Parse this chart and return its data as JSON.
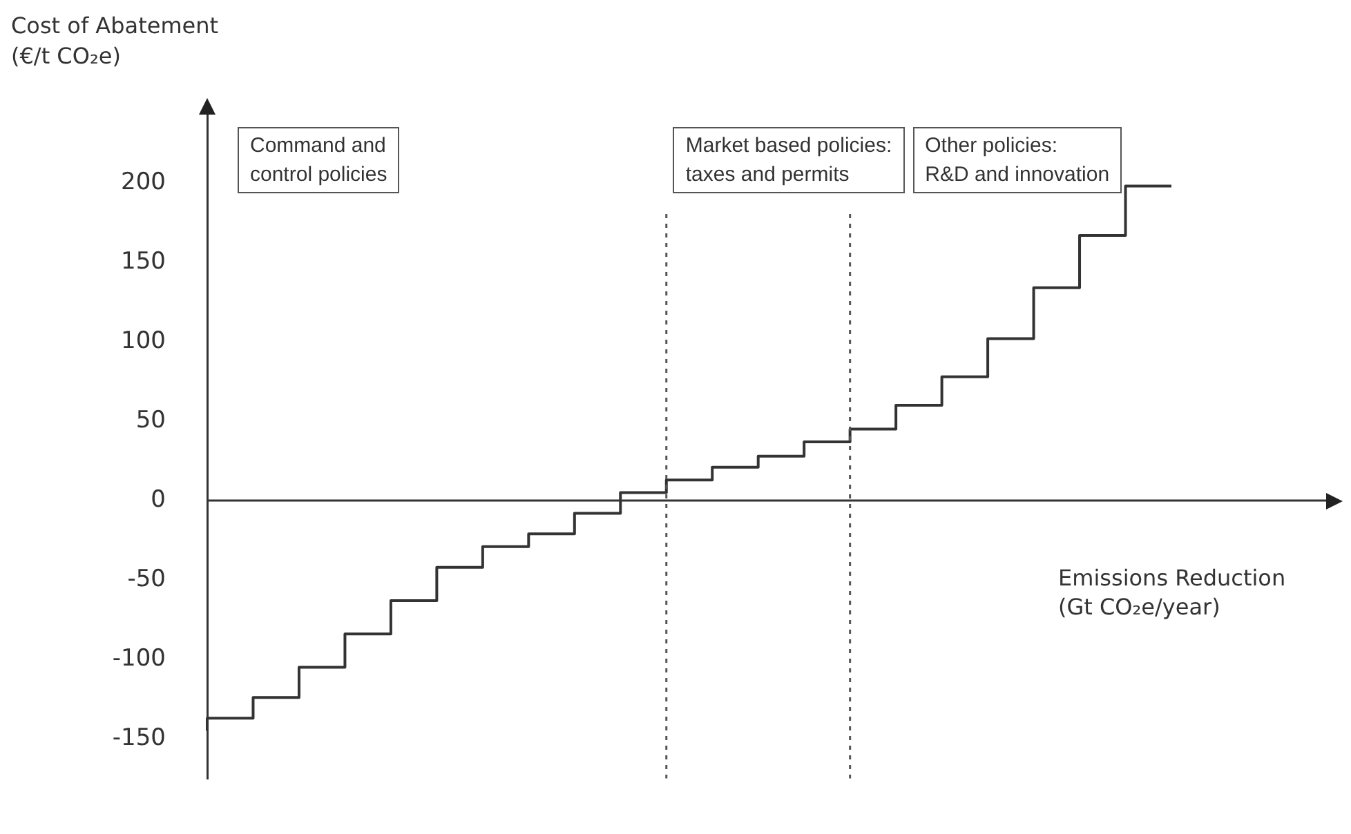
{
  "chart_data": {
    "type": "step",
    "ylabel": "Cost of Abatement\n(€/t CO₂e)",
    "xlabel": "Emissions Reduction\n(Gt CO₂e/year)",
    "categories": [
      null,
      null,
      null,
      null,
      null,
      null,
      null,
      null,
      null,
      null,
      null,
      null,
      null,
      null,
      null,
      null,
      null,
      null,
      null,
      null,
      null,
      null
    ],
    "series": [
      {
        "color": "#333333",
        "values": [
          -145,
          -137,
          -124,
          -105,
          -84,
          -63,
          -42,
          -29,
          -21,
          -8,
          5,
          13,
          21,
          28,
          37,
          45,
          60,
          78,
          102,
          134,
          167,
          198
        ]
      }
    ],
    "ylim": [
      -175,
      250
    ],
    "yticks": [
      -150,
      -100,
      -50,
      0,
      50,
      100,
      150,
      200
    ],
    "annotations": [
      "Command and\ncontrol policies",
      "Market based policies:\ntaxes and permits",
      "Other policies:\nR&D and innovation"
    ],
    "tick_labels": "y",
    "grid": false,
    "legend": false,
    "marker": "none",
    "line_style": "solid"
  }
}
